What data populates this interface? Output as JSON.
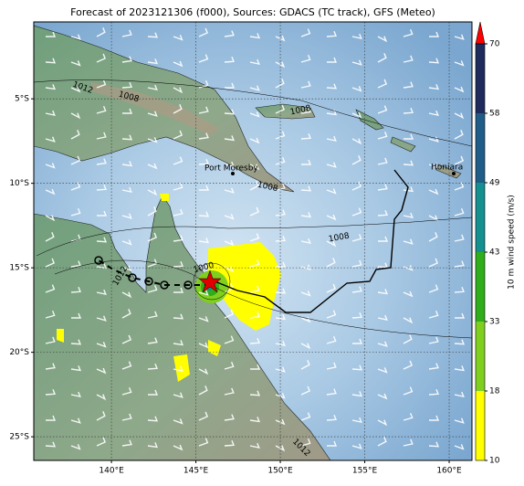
{
  "map": {
    "title": "Forecast of 2023121306 (f000), Sources: GDACS (TC track), GFS (Meteo)",
    "xlim": [
      135.4,
      161.35
    ],
    "ylim": [
      -26.4,
      -0.45
    ],
    "xticks": [
      {
        "value": 140,
        "label": "140°E"
      },
      {
        "value": 145,
        "label": "145°E"
      },
      {
        "value": 150,
        "label": "150°E"
      },
      {
        "value": 155,
        "label": "155°E"
      },
      {
        "value": 160,
        "label": "160°E"
      }
    ],
    "yticks": [
      {
        "value": -5,
        "label": "5°S"
      },
      {
        "value": -10,
        "label": "10°S"
      },
      {
        "value": -15,
        "label": "15°S"
      },
      {
        "value": -20,
        "label": "20°S"
      },
      {
        "value": -25,
        "label": "25°S"
      }
    ],
    "grid": true,
    "places": [
      "Port Moresby",
      "Honiara"
    ],
    "isobar_labels": [
      "1012",
      "1008",
      "1008",
      "1008",
      "1008",
      "1000",
      "1012",
      "1012"
    ],
    "colorbar": {
      "label": "10 m wind speed (m/s)",
      "ticks": [
        10,
        18,
        33,
        43,
        49,
        58,
        70
      ],
      "colors": [
        "#ffff00",
        "#7fcf1f",
        "#2fae1a",
        "#13908f",
        "#1f5d88",
        "#1e2b5c"
      ],
      "extend_color": "#ff0000"
    }
  }
}
